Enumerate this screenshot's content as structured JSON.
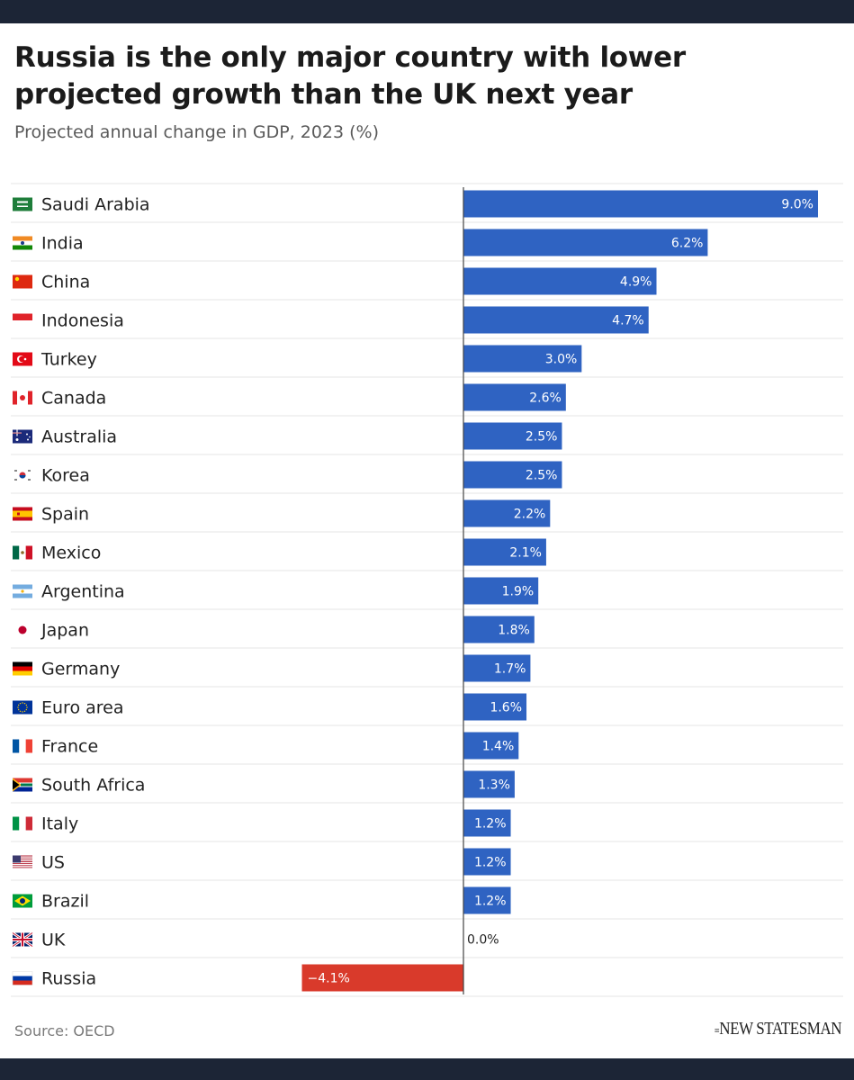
{
  "title": "Russia is the only major country with lower projected growth than the UK next year",
  "subtitle": "Projected annual change in GDP, 2023 (%)",
  "source": "Source: OECD",
  "brand": "NEW STATESMAN",
  "colors": {
    "positive": "#2f63c2",
    "negative": "#d93a2b",
    "divider": "#e6e6e6",
    "axis": "#444444"
  },
  "chart_data": {
    "type": "bar",
    "orientation": "horizontal",
    "title": "Russia is the only major country with lower projected growth than the UK next year",
    "subtitle": "Projected annual change in GDP, 2023 (%)",
    "categories": [
      "Saudi Arabia",
      "India",
      "China",
      "Indonesia",
      "Turkey",
      "Canada",
      "Australia",
      "Korea",
      "Spain",
      "Mexico",
      "Argentina",
      "Japan",
      "Germany",
      "Euro area",
      "France",
      "South Africa",
      "Italy",
      "US",
      "Brazil",
      "UK",
      "Russia"
    ],
    "values": [
      9.0,
      6.2,
      4.9,
      4.7,
      3.0,
      2.6,
      2.5,
      2.5,
      2.2,
      2.1,
      1.9,
      1.8,
      1.7,
      1.6,
      1.4,
      1.3,
      1.2,
      1.2,
      1.2,
      0.0,
      -4.1
    ],
    "labels": [
      "9.0%",
      "6.2%",
      "4.9%",
      "4.7%",
      "3.0%",
      "2.6%",
      "2.5%",
      "2.5%",
      "2.2%",
      "2.1%",
      "1.9%",
      "1.8%",
      "1.7%",
      "1.6%",
      "1.4%",
      "1.3%",
      "1.2%",
      "1.2%",
      "1.2%",
      "0.0%",
      "−4.1%"
    ],
    "flags": [
      "saudi-arabia-flag",
      "india-flag",
      "china-flag",
      "indonesia-flag",
      "turkey-flag",
      "canada-flag",
      "australia-flag",
      "korea-flag",
      "spain-flag",
      "mexico-flag",
      "argentina-flag",
      "japan-flag",
      "germany-flag",
      "euro-area-flag",
      "france-flag",
      "south-africa-flag",
      "italy-flag",
      "us-flag",
      "brazil-flag",
      "uk-flag",
      "russia-flag"
    ],
    "xlim": [
      -4.1,
      9.0
    ],
    "grid": false,
    "legend": "none"
  }
}
